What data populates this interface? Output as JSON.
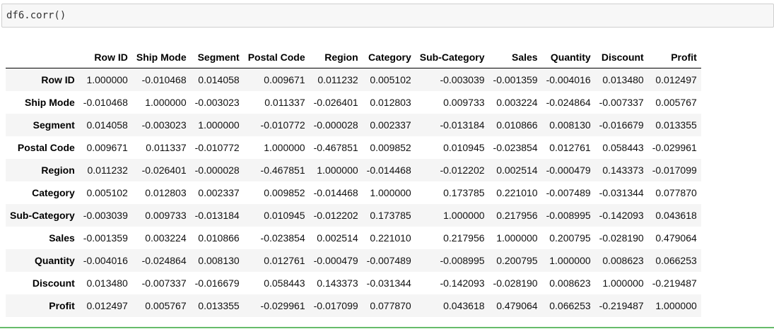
{
  "input": {
    "code": "df6.corr()"
  },
  "table": {
    "columns": [
      "",
      "Row ID",
      "Ship Mode",
      "Segment",
      "Postal Code",
      "Region",
      "Category",
      "Sub-Category",
      "Sales",
      "Quantity",
      "Discount",
      "Profit"
    ],
    "rows": [
      {
        "index": "Row ID",
        "values": [
          "1.000000",
          "-0.010468",
          "0.014058",
          "0.009671",
          "0.011232",
          "0.005102",
          "-0.003039",
          "-0.001359",
          "-0.004016",
          "0.013480",
          "0.012497"
        ]
      },
      {
        "index": "Ship Mode",
        "values": [
          "-0.010468",
          "1.000000",
          "-0.003023",
          "0.011337",
          "-0.026401",
          "0.012803",
          "0.009733",
          "0.003224",
          "-0.024864",
          "-0.007337",
          "0.005767"
        ]
      },
      {
        "index": "Segment",
        "values": [
          "0.014058",
          "-0.003023",
          "1.000000",
          "-0.010772",
          "-0.000028",
          "0.002337",
          "-0.013184",
          "0.010866",
          "0.008130",
          "-0.016679",
          "0.013355"
        ]
      },
      {
        "index": "Postal Code",
        "values": [
          "0.009671",
          "0.011337",
          "-0.010772",
          "1.000000",
          "-0.467851",
          "0.009852",
          "0.010945",
          "-0.023854",
          "0.012761",
          "0.058443",
          "-0.029961"
        ]
      },
      {
        "index": "Region",
        "values": [
          "0.011232",
          "-0.026401",
          "-0.000028",
          "-0.467851",
          "1.000000",
          "-0.014468",
          "-0.012202",
          "0.002514",
          "-0.000479",
          "0.143373",
          "-0.017099"
        ]
      },
      {
        "index": "Category",
        "values": [
          "0.005102",
          "0.012803",
          "0.002337",
          "0.009852",
          "-0.014468",
          "1.000000",
          "0.173785",
          "0.221010",
          "-0.007489",
          "-0.031344",
          "0.077870"
        ]
      },
      {
        "index": "Sub-Category",
        "values": [
          "-0.003039",
          "0.009733",
          "-0.013184",
          "0.010945",
          "-0.012202",
          "0.173785",
          "1.000000",
          "0.217956",
          "-0.008995",
          "-0.142093",
          "0.043618"
        ]
      },
      {
        "index": "Sales",
        "values": [
          "-0.001359",
          "0.003224",
          "0.010866",
          "-0.023854",
          "0.002514",
          "0.221010",
          "0.217956",
          "1.000000",
          "0.200795",
          "-0.028190",
          "0.479064"
        ]
      },
      {
        "index": "Quantity",
        "values": [
          "-0.004016",
          "-0.024864",
          "0.008130",
          "0.012761",
          "-0.000479",
          "-0.007489",
          "-0.008995",
          "0.200795",
          "1.000000",
          "0.008623",
          "0.066253"
        ]
      },
      {
        "index": "Discount",
        "values": [
          "0.013480",
          "-0.007337",
          "-0.016679",
          "0.058443",
          "0.143373",
          "-0.031344",
          "-0.142093",
          "-0.028190",
          "0.008623",
          "1.000000",
          "-0.219487"
        ]
      },
      {
        "index": "Profit",
        "values": [
          "0.012497",
          "0.005767",
          "0.013355",
          "-0.029961",
          "-0.017099",
          "0.077870",
          "0.043618",
          "0.479064",
          "0.066253",
          "-0.219487",
          "1.000000"
        ]
      }
    ]
  }
}
